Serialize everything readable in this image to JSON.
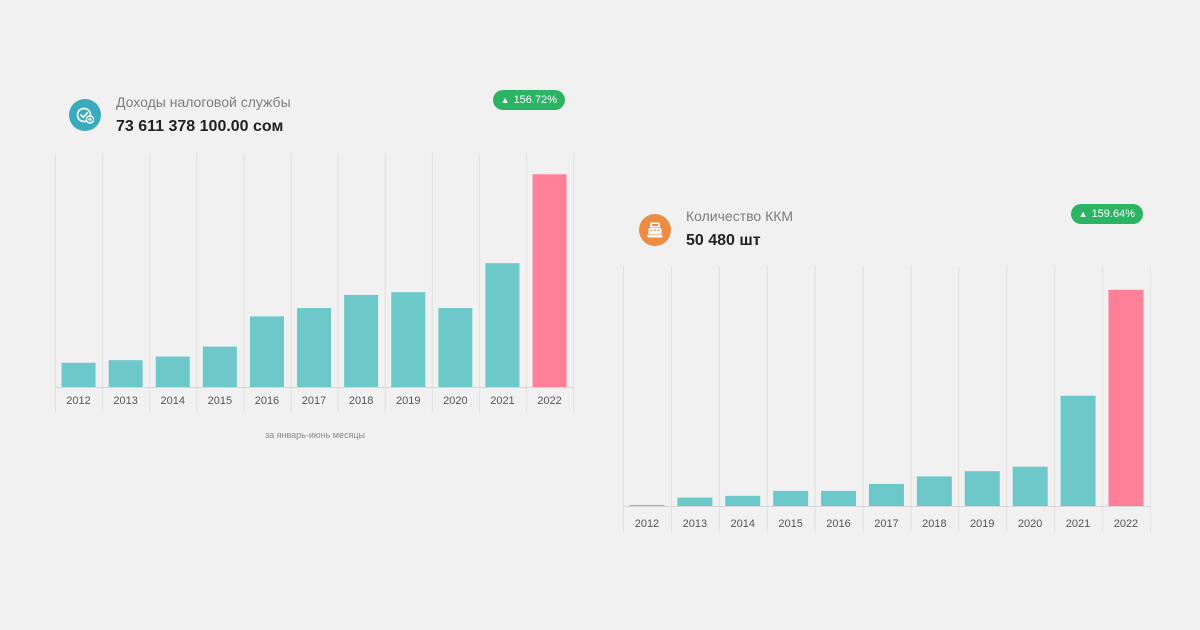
{
  "panels": [
    {
      "title": "Доходы налоговой службы",
      "value": "73 611 378 100.00 сом",
      "badge": "156.72%",
      "badge_color": "#2bb463",
      "icon": "check-plus-icon",
      "icon_color": "#3aaabd",
      "footnote": "за январь-июнь месяцы"
    },
    {
      "title": "Количество ККМ",
      "value": "50 480 шт",
      "badge": "159.64%",
      "badge_color": "#2bb463",
      "icon": "cash-register-icon",
      "icon_color": "#ef8c43"
    }
  ],
  "chart_data": [
    {
      "type": "bar",
      "title": "Доходы налоговой службы",
      "categories": [
        "2012",
        "2013",
        "2014",
        "2015",
        "2016",
        "2017",
        "2018",
        "2019",
        "2020",
        "2021",
        "2022"
      ],
      "values": [
        11.4,
        12.6,
        14.3,
        19.0,
        33.2,
        37.1,
        43.3,
        44.6,
        37.1,
        58.2,
        100
      ],
      "ylim": [
        0,
        110
      ],
      "unit": "relative (% of 2022)",
      "colors": {
        "default": "#6cc8c9",
        "highlight": "#fd8098"
      },
      "highlight_index": 10,
      "xlabel": "",
      "ylabel": "",
      "grid": true
    },
    {
      "type": "bar",
      "title": "Количество ККМ",
      "categories": [
        "2012",
        "2013",
        "2014",
        "2015",
        "2016",
        "2017",
        "2018",
        "2019",
        "2020",
        "2021",
        "2022"
      ],
      "values": [
        0.4,
        3.9,
        4.7,
        7.0,
        7.0,
        10.2,
        13.7,
        16.1,
        18.2,
        51.0,
        100
      ],
      "ylim": [
        0,
        111
      ],
      "unit": "relative (% of 2022)",
      "colors": {
        "default": "#6cc8c9",
        "highlight": "#fd8098"
      },
      "highlight_index": 10,
      "xlabel": "",
      "ylabel": "",
      "grid": true
    }
  ]
}
